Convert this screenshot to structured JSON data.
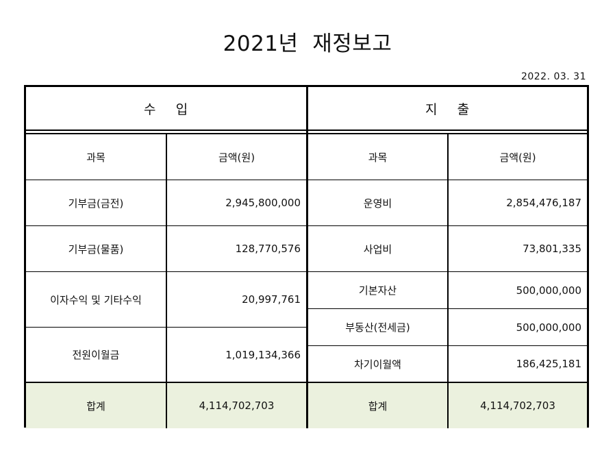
{
  "title": "2021년  재정보고",
  "date": "2022. 03. 31",
  "income": {
    "section": "수    입",
    "headers": {
      "subject": "과목",
      "amount": "금액(원)"
    },
    "rows": [
      {
        "subject": "기부금(금전)",
        "amount": "2,945,800,000"
      },
      {
        "subject": "기부금(물품)",
        "amount": "128,770,576"
      },
      {
        "subject": "이자수익 및 기타수익",
        "amount": "20,997,761"
      },
      {
        "subject": "전원이월금",
        "amount": "1,019,134,366"
      }
    ],
    "total": {
      "subject": "합계",
      "amount": "4,114,702,703"
    }
  },
  "expense": {
    "section": "지    출",
    "headers": {
      "subject": "과목",
      "amount": "금액(원)"
    },
    "rows": [
      {
        "subject": "운영비",
        "amount": "2,854,476,187"
      },
      {
        "subject": "사업비",
        "amount": "73,801,335"
      },
      {
        "subject": "기본자산",
        "amount": "500,000,000"
      },
      {
        "subject": "부동산(전세금)",
        "amount": "500,000,000"
      },
      {
        "subject": "차기이월액",
        "amount": "186,425,181"
      }
    ],
    "total": {
      "subject": "합계",
      "amount": "4,114,702,703"
    }
  }
}
